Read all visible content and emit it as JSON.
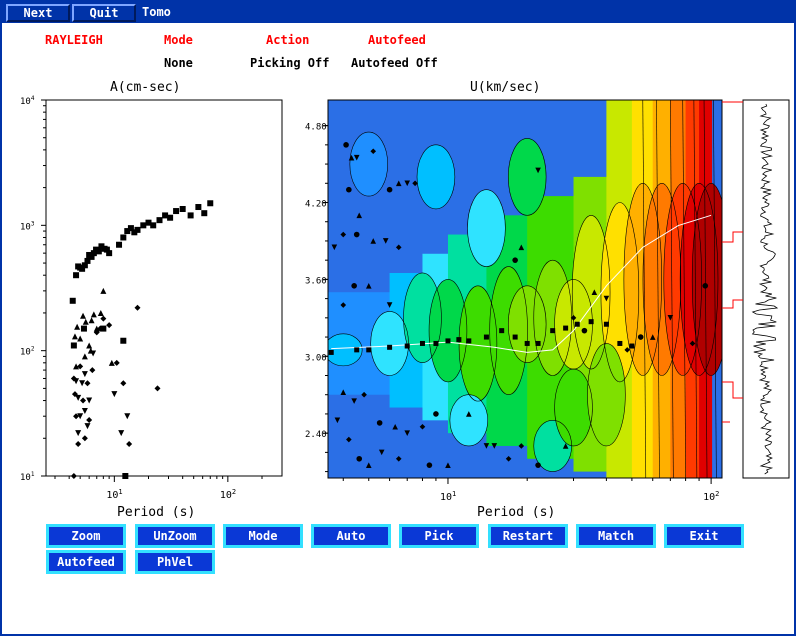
{
  "menu": {
    "next": "Next",
    "quit": "Quit",
    "tomo": "Tomo"
  },
  "header": {
    "wave": "RAYLEIGH",
    "mode_label": "Mode",
    "mode_value": "None",
    "action_label": "Action",
    "action_value": "Picking Off",
    "autofeed_label": "Autofeed",
    "autofeed_value": "Autofeed Off"
  },
  "left_panel": {
    "title": "A(cm-sec)",
    "xlabel": "Period (s)",
    "y_ticks": [
      {
        "value": 10,
        "base": "10",
        "exp": "1"
      },
      {
        "value": 100,
        "base": "10",
        "exp": "2"
      },
      {
        "value": 1000,
        "base": "10",
        "exp": "3"
      },
      {
        "value": 10000,
        "base": "10",
        "exp": "4"
      }
    ],
    "x_ticks": [
      {
        "value": 10,
        "base": "10",
        "exp": "1"
      },
      {
        "value": 100,
        "base": "10",
        "exp": "2"
      }
    ]
  },
  "right_panel": {
    "title": "U(km/sec)",
    "xlabel": "Period (s)",
    "y_ticks": [
      "2.40",
      "3.00",
      "3.60",
      "4.20",
      "4.80"
    ],
    "x_ticks": [
      {
        "value": 10,
        "base": "10",
        "exp": "1"
      },
      {
        "value": 100,
        "base": "10",
        "exp": "2"
      }
    ]
  },
  "buttons_row1": [
    "Zoom",
    "UnZoom",
    "Mode",
    "Auto",
    "Pick",
    "Restart",
    "Match",
    "Exit"
  ],
  "buttons_row2": [
    "Autofeed",
    "PhVel"
  ],
  "colors": {
    "frame": "#0033a8",
    "button": "#0a38d6",
    "button_border": "#33e0ff",
    "header_red": "#ff0000"
  },
  "chart_data": [
    {
      "type": "scatter",
      "title": "A(cm-sec)",
      "xlabel": "Period (s)",
      "ylabel": "",
      "xscale": "log",
      "yscale": "log",
      "xlim": [
        2.5,
        300
      ],
      "ylim": [
        10,
        10000
      ],
      "series": [
        {
          "marker": "square",
          "points": [
            [
              4.3,
              250
            ],
            [
              4.6,
              400
            ],
            [
              4.8,
              470
            ],
            [
              5.0,
              460
            ],
            [
              5.2,
              450
            ],
            [
              5.5,
              480
            ],
            [
              5.8,
              520
            ],
            [
              6.0,
              580
            ],
            [
              6.3,
              560
            ],
            [
              6.6,
              600
            ],
            [
              6.9,
              640
            ],
            [
              7.3,
              620
            ],
            [
              7.7,
              680
            ],
            [
              8.2,
              650
            ],
            [
              8.6,
              640
            ],
            [
              9.0,
              600
            ],
            [
              11,
              700
            ],
            [
              12,
              800
            ],
            [
              13,
              900
            ],
            [
              14,
              950
            ],
            [
              15,
              880
            ],
            [
              16,
              920
            ],
            [
              18,
              1000
            ],
            [
              20,
              1050
            ],
            [
              22,
              1000
            ],
            [
              25,
              1100
            ],
            [
              28,
              1200
            ],
            [
              31,
              1150
            ],
            [
              35,
              1300
            ],
            [
              40,
              1350
            ],
            [
              47,
              1200
            ],
            [
              55,
              1400
            ],
            [
              62,
              1250
            ],
            [
              70,
              1500
            ],
            [
              8,
              150
            ],
            [
              12,
              120
            ],
            [
              12.5,
              10
            ],
            [
              4.4,
              110
            ],
            [
              5.4,
              150
            ]
          ]
        },
        {
          "marker": "triangle",
          "points": [
            [
              4.5,
              130
            ],
            [
              4.7,
              155
            ],
            [
              5.0,
              125
            ],
            [
              5.3,
              190
            ],
            [
              5.6,
              170
            ],
            [
              6.0,
              110
            ],
            [
              6.3,
              175
            ],
            [
              6.6,
              195
            ],
            [
              7.0,
              150
            ],
            [
              7.6,
              200
            ],
            [
              8.0,
              300
            ],
            [
              4.6,
              75
            ],
            [
              5.5,
              90
            ],
            [
              6.2,
              100
            ],
            [
              9.5,
              80
            ]
          ]
        },
        {
          "marker": "triangle-down",
          "points": [
            [
              4.6,
              57
            ],
            [
              4.8,
              42
            ],
            [
              5.0,
              30
            ],
            [
              5.2,
              55
            ],
            [
              5.5,
              65
            ],
            [
              5.8,
              25
            ],
            [
              6.0,
              40
            ],
            [
              6.5,
              95
            ],
            [
              4.8,
              22
            ],
            [
              5.5,
              33
            ],
            [
              10,
              45
            ],
            [
              13,
              30
            ],
            [
              11.5,
              22
            ]
          ]
        },
        {
          "marker": "diamond",
          "points": [
            [
              4.4,
              60
            ],
            [
              4.5,
              45
            ],
            [
              4.6,
              30
            ],
            [
              4.8,
              18
            ],
            [
              5.0,
              75
            ],
            [
              5.3,
              40
            ],
            [
              5.5,
              20
            ],
            [
              5.8,
              55
            ],
            [
              6.0,
              28
            ],
            [
              6.4,
              70
            ],
            [
              7.0,
              140
            ],
            [
              7.5,
              150
            ],
            [
              8.0,
              180
            ],
            [
              9.0,
              160
            ],
            [
              10.5,
              80
            ],
            [
              12,
              55
            ],
            [
              13.5,
              18
            ],
            [
              16,
              220
            ],
            [
              24,
              50
            ],
            [
              4.4,
              10
            ]
          ]
        }
      ]
    },
    {
      "type": "heatmap",
      "title": "U(km/sec)",
      "xlabel": "Period (s)",
      "ylabel": "",
      "xscale": "log",
      "xlim": [
        3.5,
        110
      ],
      "ylim": [
        2.05,
        5.0
      ],
      "colormap": [
        "#2b6fe6",
        "#1f8fff",
        "#00bfff",
        "#2fe3ff",
        "#00e0a0",
        "#00d84a",
        "#3ddc00",
        "#7fe000",
        "#c8e800",
        "#ffe000",
        "#ffb000",
        "#ff7a00",
        "#ff3a00",
        "#e00000",
        "#b00000"
      ],
      "picked_curve": [
        [
          3.6,
          3.03
        ],
        [
          4.5,
          3.05
        ],
        [
          5,
          3.05
        ],
        [
          6,
          3.07
        ],
        [
          7,
          3.08
        ],
        [
          8,
          3.1
        ],
        [
          9,
          3.1
        ],
        [
          10,
          3.12
        ],
        [
          11,
          3.13
        ],
        [
          12,
          3.12
        ],
        [
          14,
          3.15
        ],
        [
          16,
          3.2
        ],
        [
          18,
          3.15
        ],
        [
          20,
          3.1
        ],
        [
          22,
          3.1
        ],
        [
          25,
          3.2
        ],
        [
          28,
          3.22
        ],
        [
          31,
          3.25
        ],
        [
          35,
          3.27
        ],
        [
          40,
          3.25
        ],
        [
          45,
          3.1
        ],
        [
          50,
          3.08
        ]
      ],
      "model_curve": [
        [
          3.6,
          3.06
        ],
        [
          6,
          3.08
        ],
        [
          10,
          3.11
        ],
        [
          15,
          3.07
        ],
        [
          20,
          3.03
        ],
        [
          25,
          3.05
        ],
        [
          30,
          3.2
        ],
        [
          40,
          3.55
        ],
        [
          55,
          3.85
        ],
        [
          75,
          4.02
        ],
        [
          100,
          4.1
        ]
      ],
      "scatter_points": [
        [
          4.1,
          4.65
        ],
        [
          4.3,
          4.55
        ],
        [
          4.5,
          4.55
        ],
        [
          5.2,
          4.6
        ],
        [
          6,
          4.3
        ],
        [
          6.5,
          4.35
        ],
        [
          7,
          4.35
        ],
        [
          7.5,
          4.35
        ],
        [
          4.2,
          4.3
        ],
        [
          4.6,
          4.1
        ],
        [
          3.7,
          3.85
        ],
        [
          4.0,
          3.95
        ],
        [
          4.5,
          3.95
        ],
        [
          5.2,
          3.9
        ],
        [
          5.8,
          3.9
        ],
        [
          6.5,
          3.85
        ],
        [
          4.4,
          3.55
        ],
        [
          5.0,
          3.55
        ],
        [
          6.0,
          3.4
        ],
        [
          4.0,
          3.4
        ],
        [
          18,
          3.75
        ],
        [
          19,
          3.85
        ],
        [
          22,
          4.45
        ],
        [
          30,
          3.3
        ],
        [
          33,
          3.2
        ],
        [
          36,
          3.5
        ],
        [
          40,
          3.45
        ],
        [
          48,
          3.05
        ],
        [
          54,
          3.15
        ],
        [
          60,
          3.15
        ],
        [
          70,
          3.3
        ],
        [
          85,
          3.1
        ],
        [
          95,
          3.55
        ],
        [
          4.0,
          2.72
        ],
        [
          4.4,
          2.65
        ],
        [
          4.8,
          2.7
        ],
        [
          5.5,
          2.48
        ],
        [
          6.3,
          2.45
        ],
        [
          7.0,
          2.4
        ],
        [
          8,
          2.45
        ],
        [
          9,
          2.55
        ],
        [
          12,
          2.55
        ],
        [
          15,
          2.3
        ],
        [
          19,
          2.3
        ],
        [
          22,
          2.15
        ],
        [
          28,
          2.3
        ],
        [
          3.8,
          2.5
        ],
        [
          4.2,
          2.35
        ],
        [
          4.6,
          2.2
        ],
        [
          5.0,
          2.15
        ],
        [
          5.6,
          2.25
        ],
        [
          6.5,
          2.2
        ],
        [
          8.5,
          2.15
        ],
        [
          10,
          2.15
        ],
        [
          14,
          2.3
        ],
        [
          17,
          2.2
        ]
      ]
    }
  ]
}
